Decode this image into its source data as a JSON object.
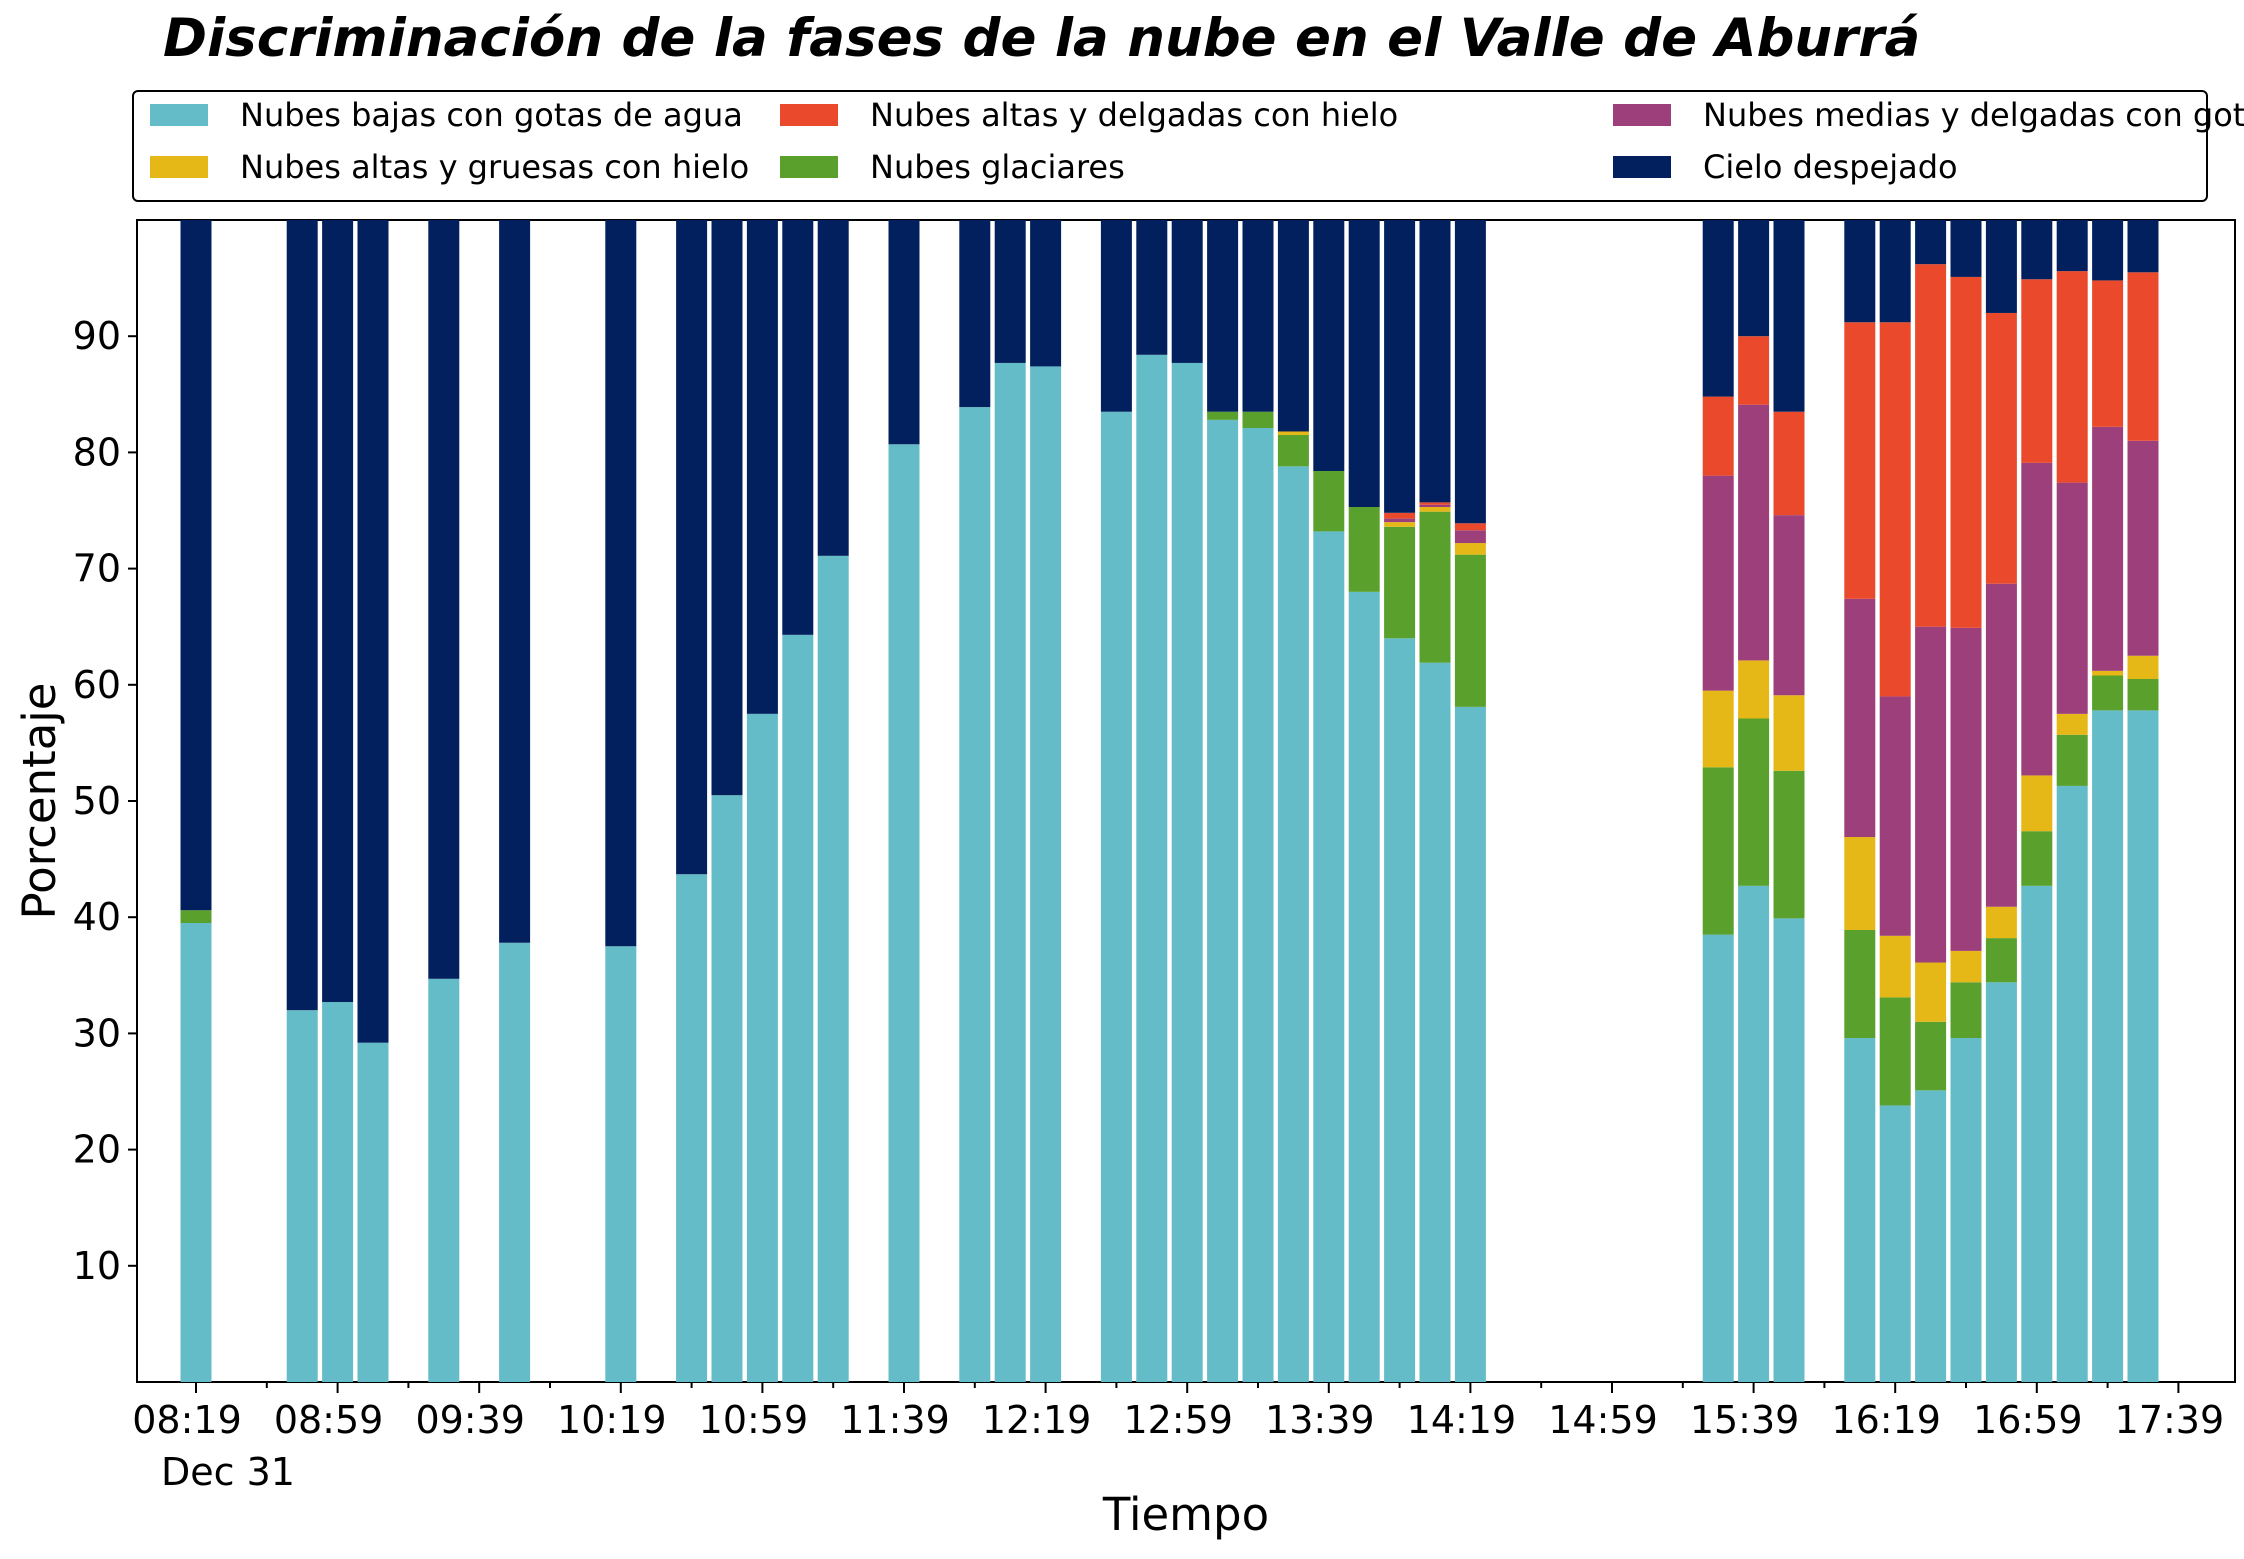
{
  "chart_data": {
    "type": "bar",
    "stacked": true,
    "title": "Discriminación de la fases de la nube en el Valle de Aburrá",
    "xlabel": "Tiempo",
    "ylabel": "Porcentaje",
    "ylim": [
      0,
      100
    ],
    "yticks": [
      10,
      20,
      30,
      40,
      50,
      60,
      70,
      80,
      90
    ],
    "x_tick_labels": [
      "08:19",
      "08:59",
      "09:39",
      "10:19",
      "10:59",
      "11:39",
      "12:19",
      "12:59",
      "13:39",
      "14:19",
      "14:59",
      "15:39",
      "16:19",
      "16:59",
      "17:39"
    ],
    "x_tick_sublabel": "Dec 31",
    "x_start": "08:19",
    "x_end": "17:39",
    "slot_minutes": 10,
    "legend_position": "top",
    "legend_columns": 3,
    "colors": {
      "Nubes bajas con gotas de agua": "#64bcc8",
      "Nubes glaciares": "#5aa02c",
      "Nubes altas y gruesas con hielo": "#e5b717",
      "Nubes medias y delgadas con gotas de agua": "#9d3f7a",
      "Nubes altas y delgadas con hielo": "#ea4a2b",
      "Cielo despejado": "#03205e"
    },
    "legend_order": [
      "Nubes bajas con gotas de agua",
      "Nubes altas y gruesas con hielo",
      "Nubes altas y delgadas con hielo",
      "Nubes glaciares",
      "Nubes medias y delgadas con gotas de agua",
      "Cielo despejado"
    ],
    "series": [
      {
        "name": "Nubes bajas con gotas de agua",
        "values": [
          39.5,
          32,
          32.7,
          29.2,
          34.7,
          37.8,
          37.5,
          43.7,
          50.5,
          57.5,
          64.3,
          71.1,
          80.7,
          83.9,
          87.7,
          87.4,
          83.5,
          88.4,
          87.7,
          82.8,
          82.1,
          78.8,
          73.2,
          68.0,
          64.0,
          61.9,
          58.1,
          38.5,
          42.7,
          39.9,
          29.6,
          23.8,
          25.1,
          29.6,
          34.4,
          42.7,
          51.3,
          57.8,
          57.8
        ]
      },
      {
        "name": "Nubes glaciares",
        "values": [
          1.1,
          0,
          0,
          0,
          0,
          0,
          0,
          0,
          0,
          0,
          0,
          0,
          0,
          0,
          0,
          0,
          0,
          0,
          0,
          0.7,
          1.4,
          2.7,
          5.2,
          7.3,
          9.6,
          13.0,
          13.1,
          14.4,
          14.4,
          12.7,
          9.3,
          9.3,
          5.9,
          4.8,
          3.8,
          4.7,
          4.4,
          3.0,
          2.7
        ]
      },
      {
        "name": "Nubes altas y gruesas con hielo",
        "values": [
          0,
          0,
          0,
          0,
          0,
          0,
          0,
          0,
          0,
          0,
          0,
          0,
          0,
          0,
          0,
          0,
          0,
          0,
          0,
          0,
          0,
          0.3,
          0,
          0,
          0.4,
          0.4,
          1.0,
          6.6,
          5.0,
          6.5,
          8.0,
          5.3,
          5.1,
          2.7,
          2.7,
          4.8,
          1.8,
          0.4,
          2.0
        ]
      },
      {
        "name": "Nubes medias y delgadas con gotas de agua",
        "values": [
          0,
          0,
          0,
          0,
          0,
          0,
          0,
          0,
          0,
          0,
          0,
          0,
          0,
          0,
          0,
          0,
          0,
          0,
          0,
          0,
          0,
          0,
          0,
          0,
          0.3,
          0.2,
          1.1,
          18.5,
          22.0,
          15.5,
          20.5,
          20.6,
          28.9,
          27.8,
          27.8,
          26.9,
          19.9,
          21.0,
          18.5
        ]
      },
      {
        "name": "Nubes altas y delgadas con hielo",
        "values": [
          0,
          0,
          0,
          0,
          0,
          0,
          0,
          0,
          0,
          0,
          0,
          0,
          0,
          0,
          0,
          0,
          0,
          0,
          0,
          0,
          0,
          0,
          0,
          0,
          0.5,
          0.2,
          0.6,
          6.8,
          5.9,
          8.9,
          23.8,
          32.2,
          31.2,
          30.2,
          23.3,
          15.8,
          18.2,
          12.6,
          14.5
        ]
      },
      {
        "name": "Cielo despejado",
        "values": [
          59.4,
          68,
          67.3,
          70.8,
          65.3,
          62.2,
          62.5,
          56.3,
          49.5,
          42.5,
          35.7,
          28.9,
          19.3,
          16.1,
          12.3,
          12.6,
          16.5,
          11.6,
          12.3,
          16.5,
          16.5,
          18.2,
          21.6,
          24.7,
          25.2,
          24.3,
          26.1,
          15.2,
          10.0,
          16.5,
          8.8,
          8.8,
          3.8,
          4.9,
          8.0,
          5.1,
          4.4,
          5.2,
          4.5
        ]
      }
    ],
    "bar_times": [
      "08:19",
      "08:49",
      "08:59",
      "09:09",
      "09:29",
      "09:49",
      "10:19",
      "10:39",
      "10:49",
      "10:59",
      "11:09",
      "11:19",
      "11:39",
      "11:59",
      "12:09",
      "12:19",
      "12:39",
      "12:49",
      "12:59",
      "13:09",
      "13:19",
      "13:29",
      "13:39",
      "13:49",
      "13:59",
      "14:09",
      "14:19",
      "15:29",
      "15:39",
      "15:49",
      "16:09",
      "16:19",
      "16:29",
      "16:39",
      "16:49",
      "16:59",
      "17:09",
      "17:19",
      "17:29"
    ]
  }
}
